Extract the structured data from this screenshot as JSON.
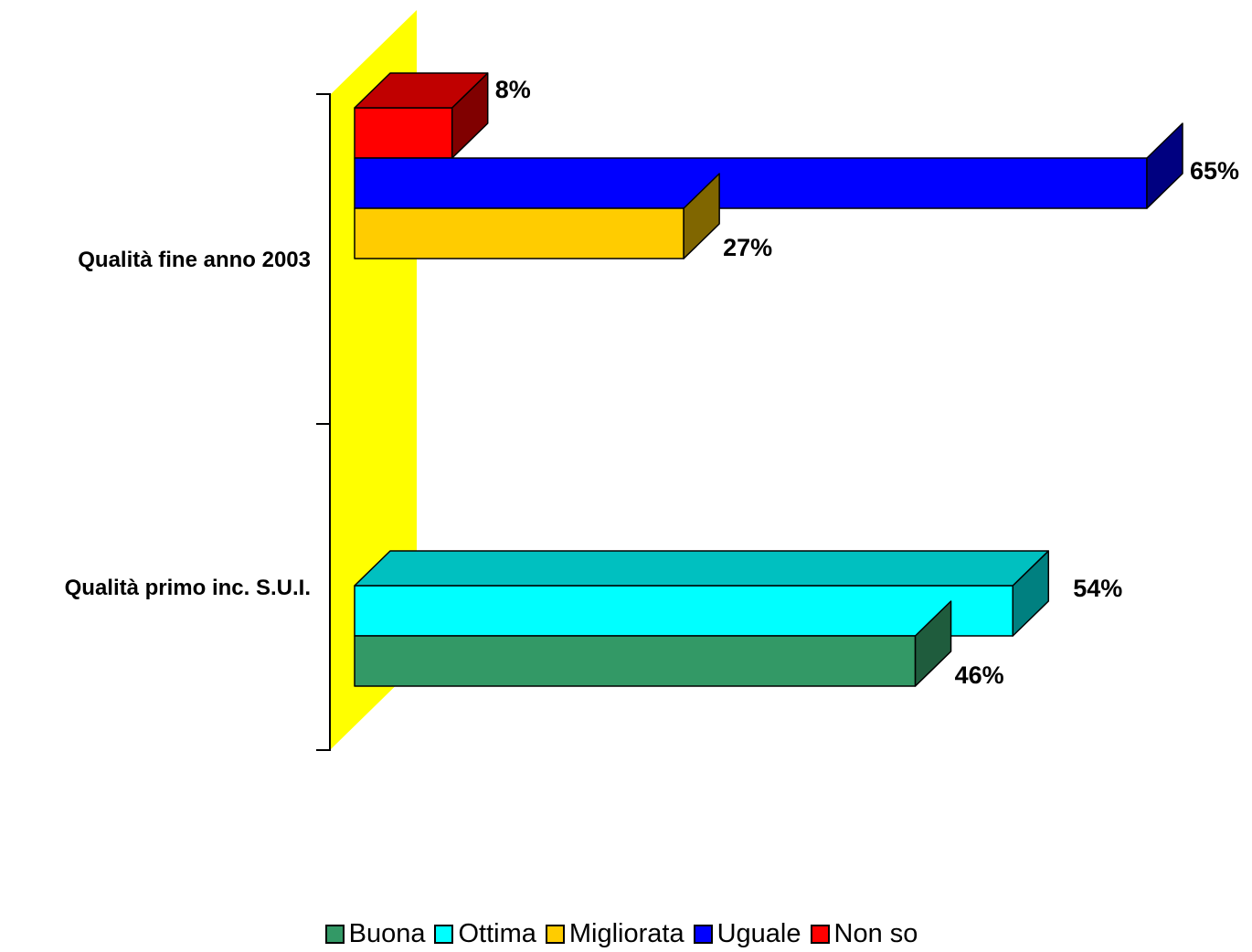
{
  "chart_data": {
    "type": "bar",
    "orientation": "horizontal",
    "style": "3d",
    "title": "",
    "xlabel": "",
    "ylabel": "",
    "xlim": [
      0,
      65
    ],
    "grid": false,
    "legend_position": "bottom",
    "groups": [
      {
        "category": "Qualità fine anno 2003",
        "bars": [
          {
            "series": "Migliorata",
            "value": 27,
            "label": "27%"
          },
          {
            "series": "Uguale",
            "value": 65,
            "label": "65%"
          },
          {
            "series": "Non so",
            "value": 8,
            "label": "8%"
          }
        ]
      },
      {
        "category": "Qualità primo inc. S.U.I.",
        "bars": [
          {
            "series": "Buona",
            "value": 46,
            "label": "46%"
          },
          {
            "series": "Ottima",
            "value": 54,
            "label": "54%"
          }
        ]
      }
    ],
    "series": [
      {
        "name": "Buona",
        "color": "#339966",
        "side": "#1f5c3d",
        "top": "#2a7f55"
      },
      {
        "name": "Ottima",
        "color": "#00ffff",
        "side": "#008080",
        "top": "#00c0c0"
      },
      {
        "name": "Migliorata",
        "color": "#ffcc00",
        "side": "#806600",
        "top": "#c09900"
      },
      {
        "name": "Uguale",
        "color": "#0000ff",
        "side": "#000080",
        "top": "#0000c0"
      },
      {
        "name": "Non so",
        "color": "#ff0000",
        "side": "#800000",
        "top": "#c00000"
      }
    ],
    "wall_color": "#ffff00"
  }
}
